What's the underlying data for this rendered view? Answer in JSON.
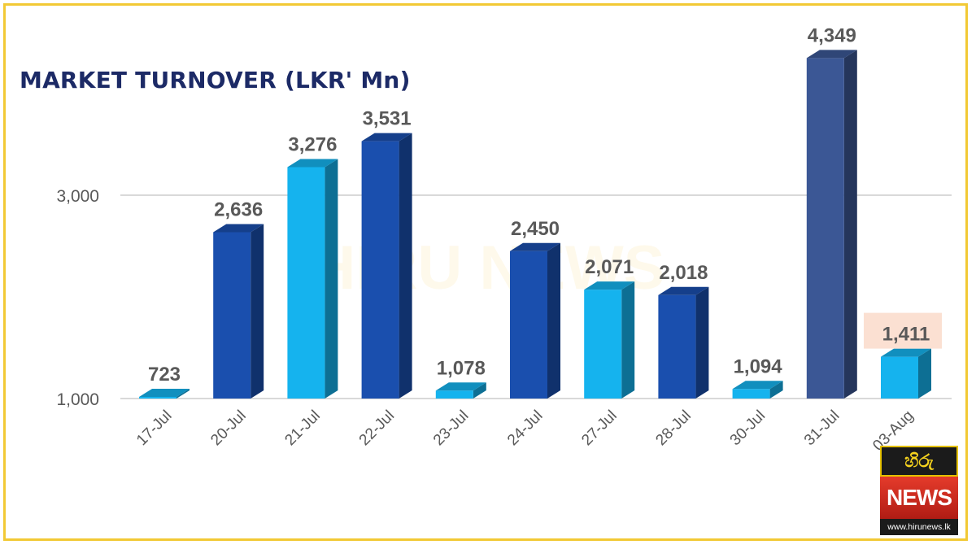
{
  "chart_data": {
    "type": "bar",
    "title": "MARKET TURNOVER (LKR' Mn)",
    "categories": [
      "17-Jul",
      "20-Jul",
      "21-Jul",
      "22-Jul",
      "23-Jul",
      "24-Jul",
      "27-Jul",
      "28-Jul",
      "30-Jul",
      "31-Jul",
      "03-Aug"
    ],
    "values": [
      723,
      2636,
      3276,
      3531,
      1078,
      2450,
      2071,
      2018,
      1094,
      4349,
      1411
    ],
    "value_labels": [
      "723",
      "2,636",
      "3,276",
      "3,531",
      "1,078",
      "2,450",
      "2,071",
      "2,018",
      "1,094",
      "4,349",
      "1,411"
    ],
    "bar_colors": [
      "#15b3ee",
      "#1a4fae",
      "#15b3ee",
      "#1a4fae",
      "#15b3ee",
      "#1a4fae",
      "#15b3ee",
      "#1a4fae",
      "#15b3ee",
      "#3b5795",
      "#15b3ee"
    ],
    "y_ticks": [
      1000,
      3000
    ],
    "y_tick_labels": [
      "1,000",
      "3,000"
    ],
    "ylim": [
      1000,
      4000
    ],
    "grid": true,
    "highlight_index": 10,
    "highlight_color": "#fbe0d2",
    "label_color": "#595959",
    "grid_color": "#d9d9d9"
  },
  "watermark": "HIRU NEWS",
  "logo": {
    "mark": "හිරු",
    "name": "NEWS",
    "url": "www.hirunews.lk"
  }
}
